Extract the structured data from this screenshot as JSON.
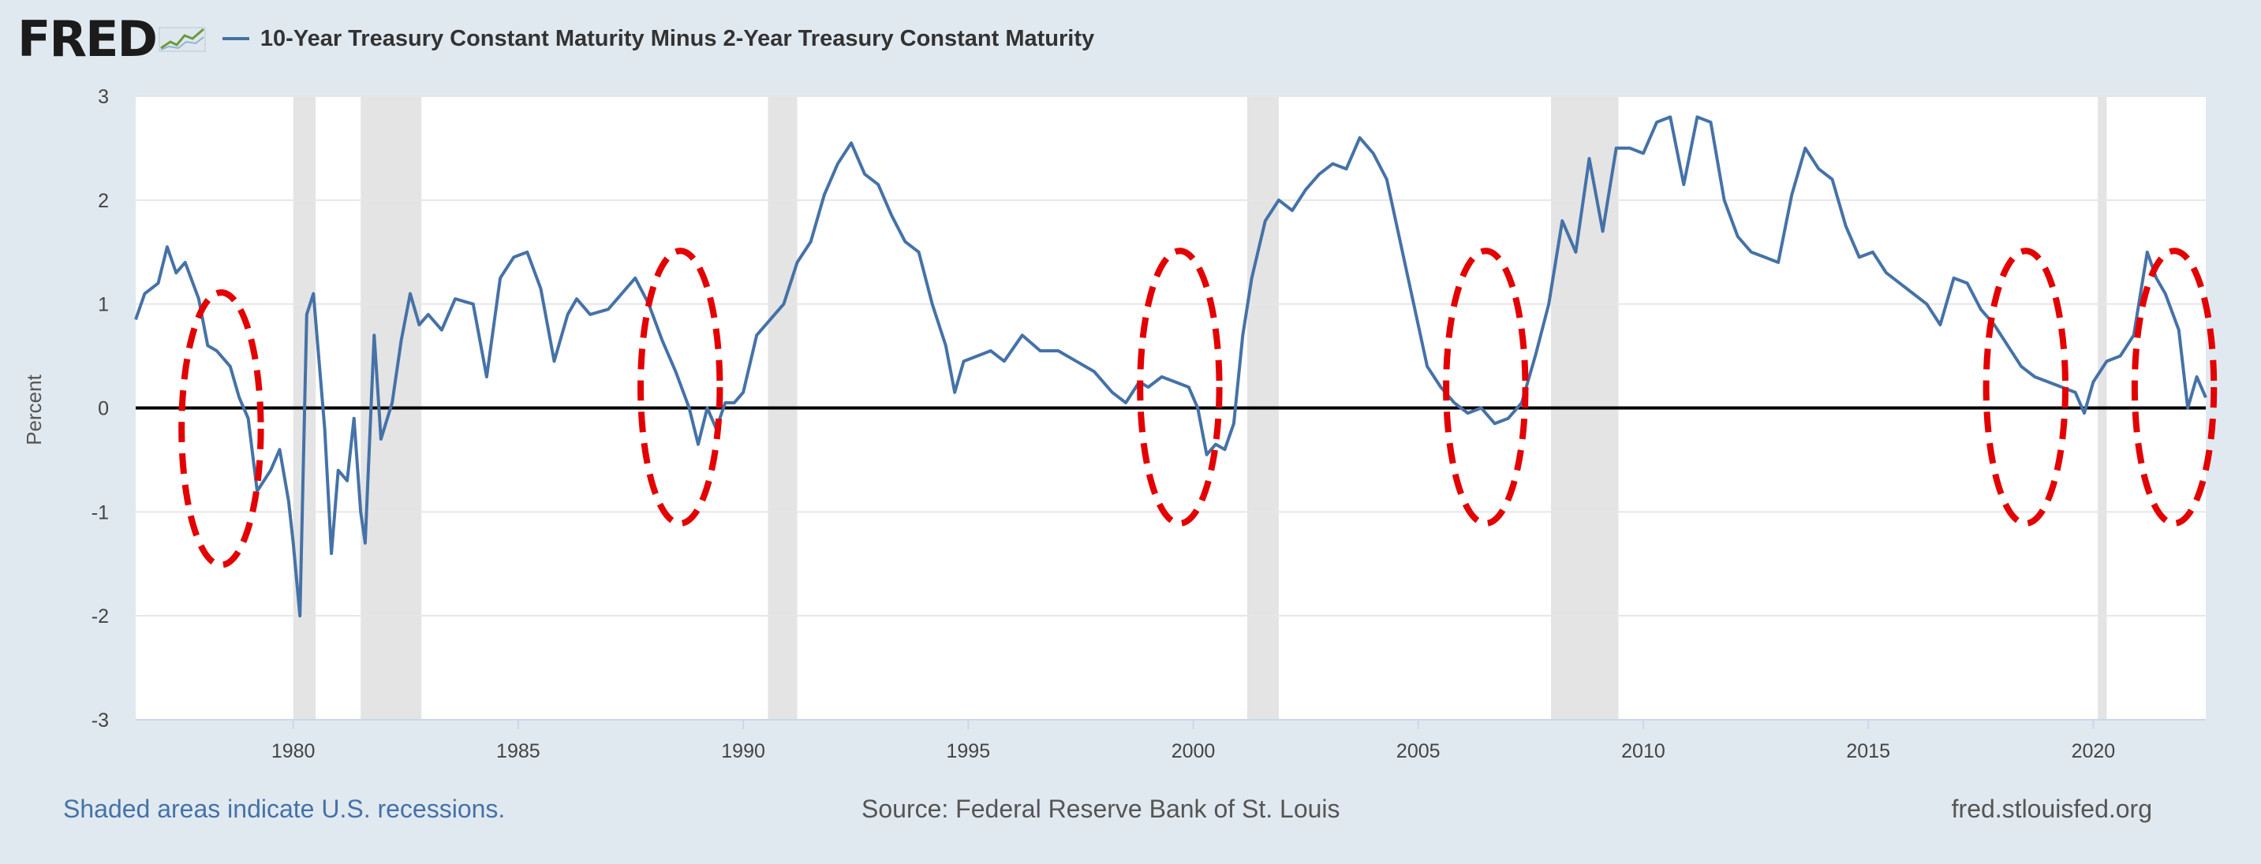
{
  "header": {
    "logo_text": "FRED",
    "series_title": "10-Year Treasury Constant Maturity Minus 2-Year Treasury Constant Maturity"
  },
  "footer": {
    "recession_note": "Shaded areas indicate U.S. recessions.",
    "source": "Source: Federal Reserve Bank of St. Louis",
    "site": "fred.stlouisfed.org"
  },
  "colors": {
    "background": "#e1e9f0",
    "plot_background": "#ffffff",
    "series_line": "#4572a7",
    "recession_shade": "#e4e4e4",
    "zero_line": "#000000",
    "annotation_circle": "#e30000"
  },
  "chart_data": {
    "type": "line",
    "title": "10-Year Treasury Constant Maturity Minus 2-Year Treasury Constant Maturity",
    "xlabel": "",
    "ylabel": "Percent",
    "xlim": [
      1976.5,
      2022.5
    ],
    "ylim": [
      -3,
      3
    ],
    "x_ticks": [
      1980,
      1985,
      1990,
      1995,
      2000,
      2005,
      2010,
      2015,
      2020
    ],
    "y_ticks": [
      3,
      2,
      1,
      0,
      -1,
      -2,
      -3
    ],
    "grid": true,
    "reference_line": 0,
    "recessions": [
      [
        1980.0,
        1980.5
      ],
      [
        1981.5,
        1982.85
      ],
      [
        1990.55,
        1991.2
      ],
      [
        2001.2,
        2001.9
      ],
      [
        2007.95,
        2009.45
      ],
      [
        2020.1,
        2020.3
      ]
    ],
    "annotations": [
      {
        "type": "dashed-circle",
        "x_center": 1978.4,
        "y_center": -0.2,
        "x_radius": 1.6,
        "y_radius": 0.95
      },
      {
        "type": "dashed-circle",
        "x_center": 1988.6,
        "y_center": 0.2,
        "x_radius": 1.6,
        "y_radius": 0.95
      },
      {
        "type": "dashed-circle",
        "x_center": 1999.7,
        "y_center": 0.2,
        "x_radius": 1.6,
        "y_radius": 0.95
      },
      {
        "type": "dashed-circle",
        "x_center": 2006.5,
        "y_center": 0.2,
        "x_radius": 1.6,
        "y_radius": 0.95
      },
      {
        "type": "dashed-circle",
        "x_center": 2018.5,
        "y_center": 0.2,
        "x_radius": 1.6,
        "y_radius": 0.95
      },
      {
        "type": "dashed-circle",
        "x_center": 2021.8,
        "y_center": 0.2,
        "x_radius": 1.6,
        "y_radius": 0.95
      }
    ],
    "series": [
      {
        "name": "10-Year Treasury Constant Maturity Minus 2-Year Treasury Constant Maturity",
        "x": [
          1976.5,
          1976.7,
          1977.0,
          1977.2,
          1977.4,
          1977.6,
          1977.9,
          1978.1,
          1978.3,
          1978.6,
          1978.8,
          1979.0,
          1979.2,
          1979.5,
          1979.7,
          1979.9,
          1980.0,
          1980.15,
          1980.3,
          1980.45,
          1980.7,
          1980.85,
          1981.0,
          1981.2,
          1981.35,
          1981.5,
          1981.6,
          1981.8,
          1981.95,
          1982.2,
          1982.4,
          1982.6,
          1982.8,
          1983.0,
          1983.3,
          1983.6,
          1984.0,
          1984.3,
          1984.6,
          1984.9,
          1985.2,
          1985.5,
          1985.8,
          1986.1,
          1986.3,
          1986.6,
          1987.0,
          1987.3,
          1987.6,
          1987.9,
          1988.2,
          1988.5,
          1988.8,
          1989.0,
          1989.2,
          1989.4,
          1989.6,
          1989.8,
          1990.0,
          1990.3,
          1990.6,
          1990.9,
          1991.2,
          1991.5,
          1991.8,
          1992.1,
          1992.4,
          1992.7,
          1993.0,
          1993.3,
          1993.6,
          1993.9,
          1994.2,
          1994.5,
          1994.7,
          1994.9,
          1995.2,
          1995.5,
          1995.8,
          1996.2,
          1996.6,
          1997.0,
          1997.4,
          1997.8,
          1998.2,
          1998.5,
          1998.8,
          1999.0,
          1999.3,
          1999.6,
          1999.9,
          2000.1,
          2000.3,
          2000.5,
          2000.7,
          2000.9,
          2001.1,
          2001.3,
          2001.6,
          2001.9,
          2002.2,
          2002.5,
          2002.8,
          2003.1,
          2003.4,
          2003.7,
          2004.0,
          2004.3,
          2004.6,
          2004.9,
          2005.2,
          2005.5,
          2005.8,
          2006.1,
          2006.4,
          2006.7,
          2007.0,
          2007.3,
          2007.6,
          2007.9,
          2008.2,
          2008.5,
          2008.8,
          2009.1,
          2009.4,
          2009.7,
          2010.0,
          2010.3,
          2010.6,
          2010.9,
          2011.2,
          2011.5,
          2011.8,
          2012.1,
          2012.4,
          2012.7,
          2013.0,
          2013.3,
          2013.6,
          2013.9,
          2014.2,
          2014.5,
          2014.8,
          2015.1,
          2015.4,
          2015.7,
          2016.0,
          2016.3,
          2016.6,
          2016.9,
          2017.2,
          2017.5,
          2017.8,
          2018.1,
          2018.4,
          2018.7,
          2019.0,
          2019.3,
          2019.6,
          2019.8,
          2020.0,
          2020.3,
          2020.6,
          2020.9,
          2021.2,
          2021.4,
          2021.6,
          2021.9,
          2022.1,
          2022.3,
          2022.5
        ],
        "values": [
          0.85,
          1.1,
          1.2,
          1.55,
          1.3,
          1.4,
          1.05,
          0.6,
          0.55,
          0.4,
          0.1,
          -0.1,
          -0.8,
          -0.6,
          -0.4,
          -0.9,
          -1.3,
          -2.0,
          0.9,
          1.1,
          -0.2,
          -1.4,
          -0.6,
          -0.7,
          -0.1,
          -1.0,
          -1.3,
          0.7,
          -0.3,
          0.05,
          0.65,
          1.1,
          0.8,
          0.9,
          0.75,
          1.05,
          1.0,
          0.3,
          1.25,
          1.45,
          1.5,
          1.15,
          0.45,
          0.9,
          1.05,
          0.9,
          0.95,
          1.1,
          1.25,
          1.0,
          0.65,
          0.35,
          0.0,
          -0.35,
          0.0,
          -0.2,
          0.05,
          0.05,
          0.15,
          0.7,
          0.85,
          1.0,
          1.4,
          1.6,
          2.05,
          2.35,
          2.55,
          2.25,
          2.15,
          1.85,
          1.6,
          1.5,
          1.0,
          0.6,
          0.15,
          0.45,
          0.5,
          0.55,
          0.45,
          0.7,
          0.55,
          0.55,
          0.45,
          0.35,
          0.15,
          0.05,
          0.25,
          0.2,
          0.3,
          0.25,
          0.2,
          0.0,
          -0.45,
          -0.35,
          -0.4,
          -0.15,
          0.7,
          1.25,
          1.8,
          2.0,
          1.9,
          2.1,
          2.25,
          2.35,
          2.3,
          2.6,
          2.45,
          2.2,
          1.6,
          1.0,
          0.4,
          0.2,
          0.05,
          -0.05,
          0.0,
          -0.15,
          -0.1,
          0.05,
          0.5,
          1.0,
          1.8,
          1.5,
          2.4,
          1.7,
          2.5,
          2.5,
          2.45,
          2.75,
          2.8,
          2.15,
          2.8,
          2.75,
          2.0,
          1.65,
          1.5,
          1.45,
          1.4,
          2.05,
          2.5,
          2.3,
          2.2,
          1.75,
          1.45,
          1.5,
          1.3,
          1.2,
          1.1,
          1.0,
          0.8,
          1.25,
          1.2,
          0.95,
          0.8,
          0.6,
          0.4,
          0.3,
          0.25,
          0.2,
          0.15,
          -0.05,
          0.25,
          0.45,
          0.5,
          0.7,
          1.5,
          1.25,
          1.1,
          0.75,
          0.0,
          0.3,
          0.1
        ]
      }
    ]
  }
}
